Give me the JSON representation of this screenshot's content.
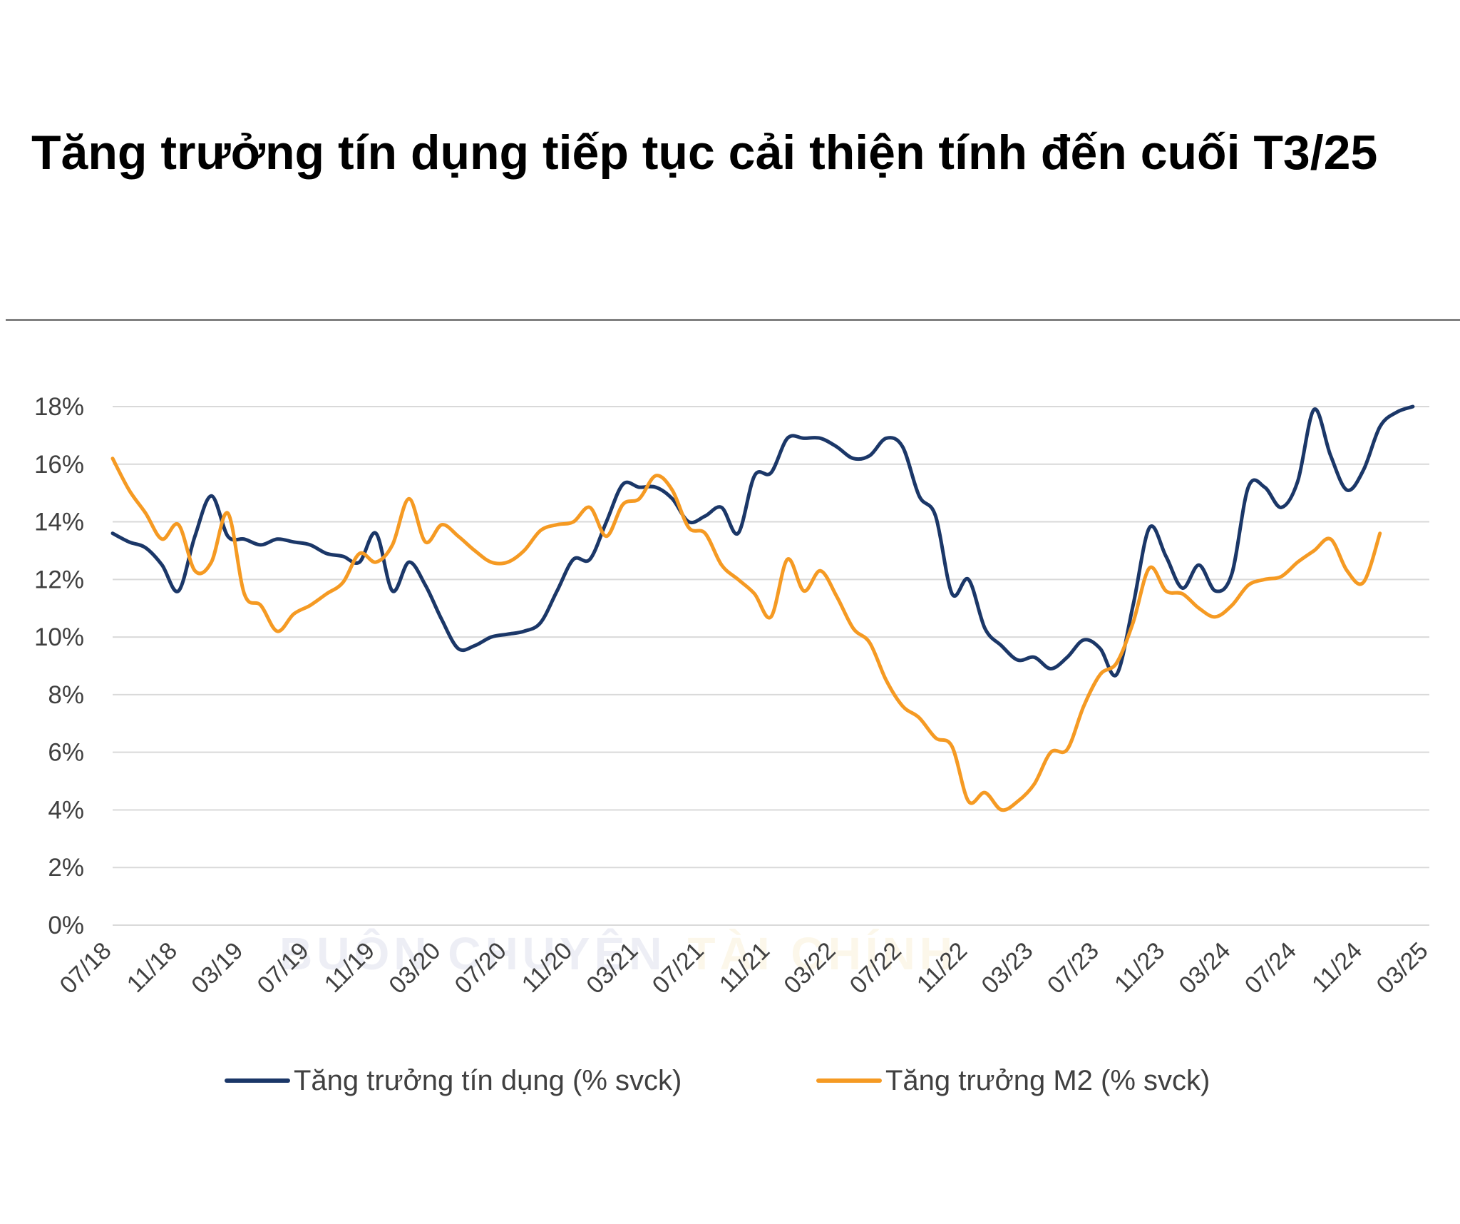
{
  "title": "Tăng trưởng tín dụng tiếp tục cải thiện tính đến cuối T3/25",
  "colors": {
    "credit": "#1b3768",
    "m2": "#f59a23",
    "grid": "#d9d9d9",
    "axis_text": "#404040"
  },
  "watermark": {
    "part1": "BUÔN CHUYỆN",
    "part2": "TÀI CHÍNH"
  },
  "chart_data": {
    "type": "line",
    "x_ticks": [
      "07/18",
      "11/18",
      "03/19",
      "07/19",
      "11/19",
      "03/20",
      "07/20",
      "11/20",
      "03/21",
      "07/21",
      "11/21",
      "03/22",
      "07/22",
      "11/22",
      "03/23",
      "07/23",
      "11/23",
      "03/24",
      "07/24",
      "11/24",
      "03/25"
    ],
    "y_ticks": [
      "0%",
      "2%",
      "4%",
      "6%",
      "8%",
      "10%",
      "12%",
      "14%",
      "16%",
      "18%"
    ],
    "ylim": [
      0,
      18
    ],
    "xlim": [
      "07/18",
      "03/25"
    ],
    "grid": true,
    "legend_position": "bottom",
    "series": [
      {
        "name": "Tăng trưởng tín dụng (% svck)",
        "color": "#1b3768",
        "points": [
          [
            "07/18",
            13.6
          ],
          [
            "08/18",
            13.3
          ],
          [
            "09/18",
            13.1
          ],
          [
            "10/18",
            12.5
          ],
          [
            "11/18",
            11.6
          ],
          [
            "12/18",
            13.5
          ],
          [
            "01/19",
            14.9
          ],
          [
            "02/19",
            13.5
          ],
          [
            "03/19",
            13.4
          ],
          [
            "04/19",
            13.2
          ],
          [
            "05/19",
            13.4
          ],
          [
            "06/19",
            13.3
          ],
          [
            "07/19",
            13.2
          ],
          [
            "08/19",
            12.9
          ],
          [
            "09/19",
            12.8
          ],
          [
            "10/19",
            12.6
          ],
          [
            "11/19",
            13.6
          ],
          [
            "12/19",
            11.6
          ],
          [
            "01/20",
            12.6
          ],
          [
            "02/20",
            11.8
          ],
          [
            "03/20",
            10.6
          ],
          [
            "04/20",
            9.6
          ],
          [
            "05/20",
            9.7
          ],
          [
            "06/20",
            10.0
          ],
          [
            "07/20",
            10.1
          ],
          [
            "08/20",
            10.2
          ],
          [
            "09/20",
            10.5
          ],
          [
            "10/20",
            11.6
          ],
          [
            "11/20",
            12.7
          ],
          [
            "12/20",
            12.7
          ],
          [
            "01/21",
            14.0
          ],
          [
            "02/21",
            15.3
          ],
          [
            "03/21",
            15.2
          ],
          [
            "04/21",
            15.2
          ],
          [
            "05/21",
            14.8
          ],
          [
            "06/21",
            14.0
          ],
          [
            "07/21",
            14.2
          ],
          [
            "08/21",
            14.5
          ],
          [
            "09/21",
            13.6
          ],
          [
            "10/21",
            15.6
          ],
          [
            "11/21",
            15.7
          ],
          [
            "12/21",
            16.9
          ],
          [
            "01/22",
            16.9
          ],
          [
            "02/22",
            16.9
          ],
          [
            "03/22",
            16.6
          ],
          [
            "04/22",
            16.2
          ],
          [
            "05/22",
            16.3
          ],
          [
            "06/22",
            16.9
          ],
          [
            "07/22",
            16.6
          ],
          [
            "08/22",
            14.9
          ],
          [
            "09/22",
            14.2
          ],
          [
            "10/22",
            11.5
          ],
          [
            "11/22",
            12.0
          ],
          [
            "12/22",
            10.3
          ],
          [
            "01/23",
            9.7
          ],
          [
            "02/23",
            9.2
          ],
          [
            "03/23",
            9.3
          ],
          [
            "04/23",
            8.9
          ],
          [
            "05/23",
            9.3
          ],
          [
            "06/23",
            9.9
          ],
          [
            "07/23",
            9.6
          ],
          [
            "08/23",
            8.7
          ],
          [
            "09/23",
            11.1
          ],
          [
            "10/23",
            13.8
          ],
          [
            "11/23",
            12.8
          ],
          [
            "12/23",
            11.7
          ],
          [
            "01/24",
            12.5
          ],
          [
            "02/24",
            11.6
          ],
          [
            "03/24",
            12.2
          ],
          [
            "04/24",
            15.2
          ],
          [
            "05/24",
            15.2
          ],
          [
            "06/24",
            14.5
          ],
          [
            "07/24",
            15.4
          ],
          [
            "08/24",
            17.9
          ],
          [
            "09/24",
            16.3
          ],
          [
            "10/24",
            15.1
          ],
          [
            "11/24",
            15.8
          ],
          [
            "12/24",
            17.3
          ],
          [
            "01/25",
            17.8
          ],
          [
            "02/25",
            18.0
          ]
        ]
      },
      {
        "name": "Tăng trưởng M2 (% svck)",
        "color": "#f59a23",
        "points": [
          [
            "07/18",
            16.2
          ],
          [
            "08/18",
            15.1
          ],
          [
            "09/18",
            14.3
          ],
          [
            "10/18",
            13.4
          ],
          [
            "11/18",
            13.9
          ],
          [
            "12/18",
            12.3
          ],
          [
            "01/19",
            12.6
          ],
          [
            "02/19",
            14.3
          ],
          [
            "03/19",
            11.5
          ],
          [
            "04/19",
            11.1
          ],
          [
            "05/19",
            10.2
          ],
          [
            "06/19",
            10.8
          ],
          [
            "07/19",
            11.1
          ],
          [
            "08/19",
            11.5
          ],
          [
            "09/19",
            11.9
          ],
          [
            "10/19",
            12.9
          ],
          [
            "11/19",
            12.6
          ],
          [
            "12/19",
            13.2
          ],
          [
            "01/20",
            14.8
          ],
          [
            "02/20",
            13.3
          ],
          [
            "03/20",
            13.9
          ],
          [
            "04/20",
            13.5
          ],
          [
            "05/20",
            13.0
          ],
          [
            "06/20",
            12.6
          ],
          [
            "07/20",
            12.6
          ],
          [
            "08/20",
            13.0
          ],
          [
            "09/20",
            13.7
          ],
          [
            "10/20",
            13.9
          ],
          [
            "11/20",
            14.0
          ],
          [
            "12/20",
            14.5
          ],
          [
            "01/21",
            13.5
          ],
          [
            "02/21",
            14.6
          ],
          [
            "03/21",
            14.8
          ],
          [
            "04/21",
            15.6
          ],
          [
            "05/21",
            15.1
          ],
          [
            "06/21",
            13.8
          ],
          [
            "07/21",
            13.6
          ],
          [
            "08/21",
            12.5
          ],
          [
            "09/21",
            12.0
          ],
          [
            "10/21",
            11.5
          ],
          [
            "11/21",
            10.7
          ],
          [
            "12/21",
            12.7
          ],
          [
            "01/22",
            11.6
          ],
          [
            "02/22",
            12.3
          ],
          [
            "03/22",
            11.4
          ],
          [
            "04/22",
            10.3
          ],
          [
            "05/22",
            9.8
          ],
          [
            "06/22",
            8.5
          ],
          [
            "07/22",
            7.6
          ],
          [
            "08/22",
            7.2
          ],
          [
            "09/22",
            6.5
          ],
          [
            "10/22",
            6.2
          ],
          [
            "11/22",
            4.3
          ],
          [
            "12/22",
            4.6
          ],
          [
            "01/23",
            4.0
          ],
          [
            "02/23",
            4.3
          ],
          [
            "03/23",
            4.9
          ],
          [
            "04/23",
            6.0
          ],
          [
            "05/23",
            6.1
          ],
          [
            "06/23",
            7.6
          ],
          [
            "07/23",
            8.7
          ],
          [
            "08/23",
            9.1
          ],
          [
            "09/23",
            10.5
          ],
          [
            "10/23",
            12.4
          ],
          [
            "11/23",
            11.6
          ],
          [
            "12/23",
            11.5
          ],
          [
            "01/24",
            11.0
          ],
          [
            "02/24",
            10.7
          ],
          [
            "03/24",
            11.1
          ],
          [
            "04/24",
            11.8
          ],
          [
            "05/24",
            12.0
          ],
          [
            "06/24",
            12.1
          ],
          [
            "07/24",
            12.6
          ],
          [
            "08/24",
            13.0
          ],
          [
            "09/24",
            13.4
          ],
          [
            "10/24",
            12.3
          ],
          [
            "11/24",
            11.9
          ],
          [
            "12/24",
            13.6
          ]
        ]
      }
    ]
  }
}
